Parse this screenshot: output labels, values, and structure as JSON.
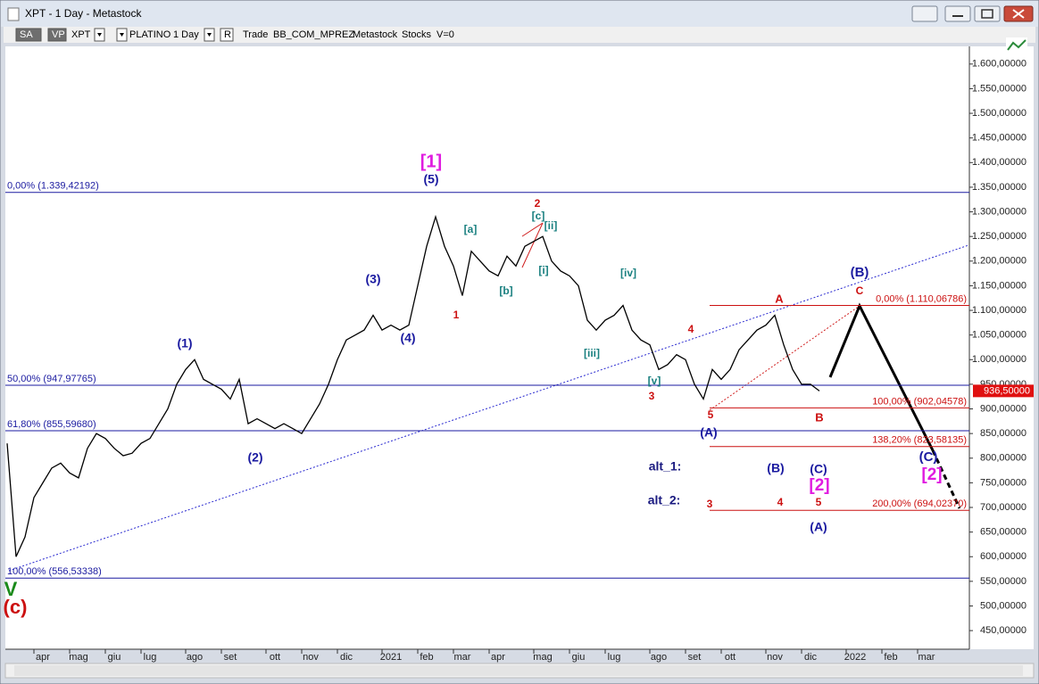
{
  "window": {
    "title": "XPT - 1 Day - Metastock",
    "toolbar": [
      "SA",
      "VP",
      "XPT",
      "PLATINO",
      "1 Day",
      "R",
      "Trade",
      "BB_COM_MPREZ",
      "Metastock",
      "Stocks",
      "V=0"
    ]
  },
  "chart_data": {
    "type": "line",
    "categories": [
      null,
      null,
      null,
      null,
      "apr",
      null,
      null,
      null,
      "mag",
      null,
      null,
      null,
      "giu",
      null,
      null,
      null,
      "lug",
      null,
      null,
      null,
      null,
      "ago",
      null,
      null,
      null,
      "set",
      null,
      null,
      null,
      null,
      "ott",
      null,
      null,
      null,
      "nov",
      null,
      null,
      null,
      "dic",
      null,
      null,
      null,
      null,
      "2021",
      null,
      null,
      null,
      "feb",
      null,
      null,
      null,
      "mar",
      null,
      null,
      null,
      "apr",
      null,
      null,
      null,
      null,
      "mag",
      null,
      null,
      null,
      "giu",
      null,
      null,
      null,
      "lug",
      null,
      null,
      null,
      null,
      "ago",
      null,
      null,
      null,
      "set",
      null,
      null,
      null,
      "ott",
      null,
      null,
      null,
      null,
      "nov",
      null,
      null,
      null,
      "dic",
      null,
      null,
      null,
      null,
      "2022",
      null,
      null,
      null,
      "feb",
      null,
      null,
      null,
      "mar",
      null,
      null,
      null,
      null
    ],
    "values": [
      830,
      600,
      640,
      720,
      750,
      780,
      790,
      770,
      760,
      820,
      850,
      840,
      820,
      805,
      810,
      830,
      840,
      870,
      900,
      950,
      980,
      1000,
      960,
      950,
      940,
      920,
      960,
      870,
      880,
      870,
      860,
      870,
      860,
      850,
      880,
      910,
      950,
      1000,
      1040,
      1050,
      1060,
      1090,
      1060,
      1070,
      1060,
      1070,
      1150,
      1230,
      1290,
      1230,
      1190,
      1130,
      1220,
      1200,
      1180,
      1170,
      1210,
      1190,
      1230,
      1240,
      1250,
      1200,
      1180,
      1170,
      1150,
      1080,
      1060,
      1080,
      1090,
      1110,
      1060,
      1040,
      1030,
      980,
      990,
      1010,
      1000,
      950,
      920,
      980,
      960,
      980,
      1020,
      1040,
      1060,
      1070,
      1090,
      1030,
      980,
      950,
      950,
      936.5,
      null,
      null,
      null,
      null,
      null,
      null,
      null,
      null,
      null,
      null,
      null,
      null,
      null,
      null,
      null,
      null
    ],
    "color": "#000000",
    "ylim": [
      414,
      1625
    ],
    "yticks": [
      {
        "value": 450,
        "label": "450,00000"
      },
      {
        "value": 500,
        "label": "500,00000"
      },
      {
        "value": 550,
        "label": "550,00000"
      },
      {
        "value": 600,
        "label": "600,00000"
      },
      {
        "value": 650,
        "label": "650,00000"
      },
      {
        "value": 700,
        "label": "700,00000"
      },
      {
        "value": 750,
        "label": "750,00000"
      },
      {
        "value": 800,
        "label": "800,00000"
      },
      {
        "value": 850,
        "label": "850,00000"
      },
      {
        "value": 900,
        "label": "900,00000"
      },
      {
        "value": 950,
        "label": "950,00000"
      },
      {
        "value": 1000,
        "label": "1.000,00000"
      },
      {
        "value": 1050,
        "label": "1.050,00000"
      },
      {
        "value": 1100,
        "label": "1.100,00000"
      },
      {
        "value": 1150,
        "label": "1.150,00000"
      },
      {
        "value": 1200,
        "label": "1.200,00000"
      },
      {
        "value": 1250,
        "label": "1.250,00000"
      },
      {
        "value": 1300,
        "label": "1.300,00000"
      },
      {
        "value": 1350,
        "label": "1.350,00000"
      },
      {
        "value": 1400,
        "label": "1.400,00000"
      },
      {
        "value": 1450,
        "label": "1.450,00000"
      },
      {
        "value": 1500,
        "label": "1.500,00000"
      },
      {
        "value": 1550,
        "label": "1.550,00000"
      },
      {
        "value": 1600,
        "label": "1.600,00000"
      }
    ],
    "last_price": {
      "value": 936.5,
      "label": "936,50000",
      "color": "#e01010"
    },
    "retracement_levels": {
      "color": "#1a1aa0",
      "levels": [
        {
          "value": 1339.42192,
          "label": "0,00% (1.339,42192)"
        },
        {
          "value": 947.97765,
          "label": "50,00% (947,97765)"
        },
        {
          "value": 855.5968,
          "label": "61,80% (855,59680)"
        },
        {
          "value": 556.53338,
          "label": "100,00% (556,53338)"
        }
      ]
    },
    "extension_levels": {
      "color": "#cc1111",
      "levels": [
        {
          "value": 1110.06786,
          "label": "0,00% (1.110,06786)"
        },
        {
          "value": 902.04578,
          "label": "100,00% (902,04578)"
        },
        {
          "value": 823.58135,
          "label": "138,20% (823,58135)"
        },
        {
          "value": 694.0237,
          "label": "200,00% (694,02370)"
        }
      ]
    },
    "annotations": [
      {
        "text": "[1]",
        "color": "#e01ce0"
      },
      {
        "text": "(5)",
        "color": "#1a1aa0"
      },
      {
        "text": "(1)",
        "color": "#1a1aa0"
      },
      {
        "text": "(2)",
        "color": "#1a1aa0"
      },
      {
        "text": "(3)",
        "color": "#1a1aa0"
      },
      {
        "text": "(4)",
        "color": "#1a1aa0"
      },
      {
        "text": "1",
        "color": "#cc1111"
      },
      {
        "text": "2",
        "color": "#cc1111"
      },
      {
        "text": "[a]",
        "color": "#1a8080"
      },
      {
        "text": "[b]",
        "color": "#1a8080"
      },
      {
        "text": "[c]",
        "color": "#1a8080"
      },
      {
        "text": "[i]",
        "color": "#1a8080"
      },
      {
        "text": "[ii]",
        "color": "#1a8080"
      },
      {
        "text": "[iii]",
        "color": "#1a8080"
      },
      {
        "text": "[iv]",
        "color": "#1a8080"
      },
      {
        "text": "[v]",
        "color": "#1a8080"
      },
      {
        "text": "3",
        "color": "#cc1111"
      },
      {
        "text": "4",
        "color": "#cc1111"
      },
      {
        "text": "5",
        "color": "#cc1111"
      },
      {
        "text": "(A)",
        "color": "#1a1aa0"
      },
      {
        "text": "A",
        "color": "#cc1111"
      },
      {
        "text": "B",
        "color": "#cc1111"
      },
      {
        "text": "(B)",
        "color": "#1a1aa0"
      },
      {
        "text": "C",
        "color": "#cc1111"
      },
      {
        "text": "(C)",
        "color": "#1a1aa0"
      },
      {
        "text": "[2]",
        "color": "#e01ce0"
      },
      {
        "text": "alt_1:",
        "color": "#1a1a80"
      },
      {
        "text": "(B)",
        "color": "#1a1aa0"
      },
      {
        "text": "(C)",
        "color": "#1a1aa0"
      },
      {
        "text": "[2]",
        "color": "#e01ce0"
      },
      {
        "text": "alt_2:",
        "color": "#1a1a80"
      },
      {
        "text": "3",
        "color": "#cc1111"
      },
      {
        "text": "4",
        "color": "#cc1111"
      },
      {
        "text": "5",
        "color": "#cc1111"
      },
      {
        "text": "(A)",
        "color": "#1a1aa0"
      },
      {
        "text": "V",
        "color": "#1a8a1a"
      },
      {
        "text": "(c)",
        "color": "#cc1111"
      }
    ]
  }
}
